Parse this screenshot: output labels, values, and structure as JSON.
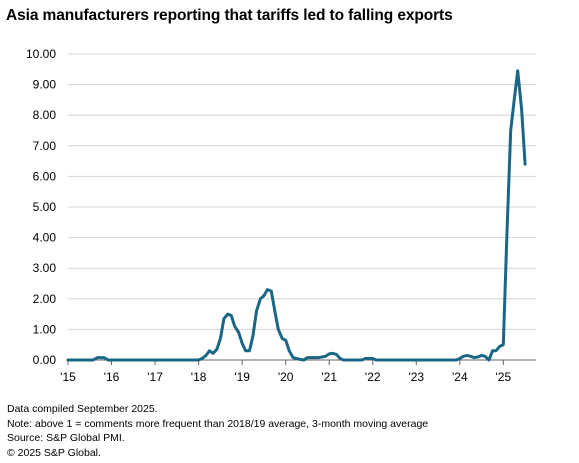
{
  "chart_data": {
    "type": "line",
    "title": "Asia manufacturers reporting that tariffs led to falling exports",
    "xlabel": "",
    "ylabel": "",
    "ylim": [
      0,
      10
    ],
    "yticks": [
      "0.00",
      "1.00",
      "2.00",
      "3.00",
      "4.00",
      "5.00",
      "6.00",
      "7.00",
      "8.00",
      "9.00",
      "10.00"
    ],
    "xlim": [
      2015.0,
      2025.75
    ],
    "xticks": [
      {
        "value": 2015,
        "label": "'15"
      },
      {
        "value": 2016,
        "label": "'16"
      },
      {
        "value": 2017,
        "label": "'17"
      },
      {
        "value": 2018,
        "label": "'18"
      },
      {
        "value": 2019,
        "label": "'19"
      },
      {
        "value": 2020,
        "label": "'20"
      },
      {
        "value": 2021,
        "label": "'21"
      },
      {
        "value": 2022,
        "label": "'22"
      },
      {
        "value": 2023,
        "label": "'23"
      },
      {
        "value": 2024,
        "label": "'24"
      },
      {
        "value": 2025,
        "label": "'25"
      }
    ],
    "grid": "horizontal",
    "line_color": "#1a6685",
    "series": [
      {
        "points": [
          [
            2015.0,
            0.0
          ],
          [
            2015.58,
            0.0
          ],
          [
            2015.67,
            0.08
          ],
          [
            2015.83,
            0.08
          ],
          [
            2015.92,
            0.0
          ],
          [
            2016.5,
            0.0
          ],
          [
            2017.5,
            0.0
          ],
          [
            2018.0,
            0.0
          ],
          [
            2018.08,
            0.05
          ],
          [
            2018.17,
            0.15
          ],
          [
            2018.25,
            0.3
          ],
          [
            2018.33,
            0.22
          ],
          [
            2018.42,
            0.35
          ],
          [
            2018.5,
            0.7
          ],
          [
            2018.58,
            1.35
          ],
          [
            2018.67,
            1.5
          ],
          [
            2018.75,
            1.45
          ],
          [
            2018.83,
            1.1
          ],
          [
            2018.92,
            0.9
          ],
          [
            2019.0,
            0.55
          ],
          [
            2019.08,
            0.3
          ],
          [
            2019.17,
            0.3
          ],
          [
            2019.25,
            0.8
          ],
          [
            2019.33,
            1.6
          ],
          [
            2019.42,
            2.0
          ],
          [
            2019.5,
            2.1
          ],
          [
            2019.58,
            2.3
          ],
          [
            2019.67,
            2.25
          ],
          [
            2019.75,
            1.6
          ],
          [
            2019.83,
            1.0
          ],
          [
            2019.92,
            0.7
          ],
          [
            2020.0,
            0.65
          ],
          [
            2020.08,
            0.3
          ],
          [
            2020.17,
            0.08
          ],
          [
            2020.25,
            0.05
          ],
          [
            2020.33,
            0.02
          ],
          [
            2020.42,
            0.0
          ],
          [
            2020.5,
            0.08
          ],
          [
            2020.75,
            0.08
          ],
          [
            2020.92,
            0.12
          ],
          [
            2021.0,
            0.2
          ],
          [
            2021.08,
            0.22
          ],
          [
            2021.17,
            0.18
          ],
          [
            2021.25,
            0.05
          ],
          [
            2021.33,
            0.0
          ],
          [
            2021.75,
            0.0
          ],
          [
            2021.83,
            0.05
          ],
          [
            2022.0,
            0.05
          ],
          [
            2022.08,
            0.0
          ],
          [
            2023.0,
            0.0
          ],
          [
            2023.92,
            0.0
          ],
          [
            2024.0,
            0.05
          ],
          [
            2024.08,
            0.12
          ],
          [
            2024.17,
            0.15
          ],
          [
            2024.25,
            0.12
          ],
          [
            2024.33,
            0.08
          ],
          [
            2024.42,
            0.1
          ],
          [
            2024.5,
            0.15
          ],
          [
            2024.58,
            0.12
          ],
          [
            2024.67,
            0.0
          ],
          [
            2024.75,
            0.3
          ],
          [
            2024.83,
            0.3
          ],
          [
            2024.92,
            0.45
          ],
          [
            2025.0,
            0.5
          ],
          [
            2025.08,
            4.0
          ],
          [
            2025.17,
            7.5
          ],
          [
            2025.25,
            8.5
          ],
          [
            2025.33,
            9.45
          ],
          [
            2025.42,
            8.2
          ],
          [
            2025.5,
            6.4
          ]
        ]
      }
    ]
  },
  "notes": [
    "Data compiled September 2025.",
    "Note: above 1 = comments more frequent than 2018/19 average, 3-month moving average",
    "Source: S&P Global PMI.",
    "© 2025 S&P Global."
  ]
}
